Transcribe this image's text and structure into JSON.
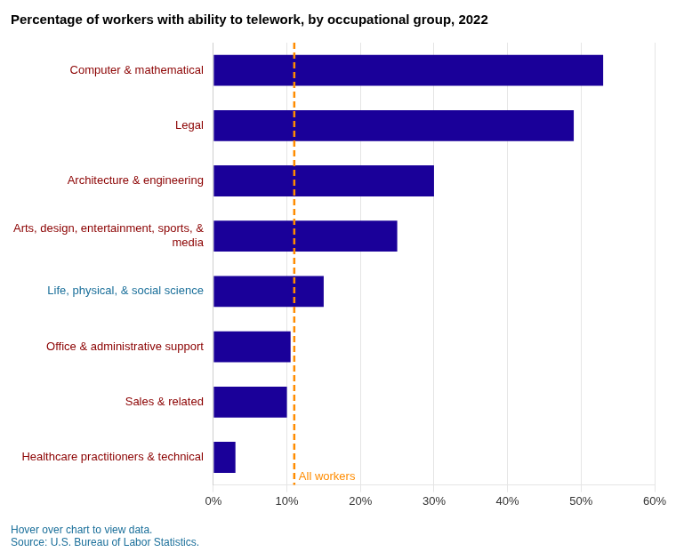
{
  "chart_data": {
    "type": "bar",
    "orientation": "horizontal",
    "title": "Percentage of workers with ability to telework, by occupational group, 2022",
    "categories": [
      "Healthcare practitioners & technical",
      "Sales & related",
      "Office & administrative support",
      "Life, physical, & social science",
      "Arts, design, entertainment, sports, &\nmedia",
      "Architecture & engineering",
      "Legal",
      "Computer & mathematical"
    ],
    "values": [
      3,
      10,
      10.5,
      15,
      25,
      30,
      49,
      53
    ],
    "color": "#1a0099",
    "label_colors": [
      "#8b0000",
      "#8b0000",
      "#8b0000",
      "#1a6f9a",
      "#8b0000",
      "#8b0000",
      "#8b0000",
      "#8b0000"
    ],
    "xlim": [
      0,
      60
    ],
    "xticks": [
      {
        "value": 0,
        "label": "0%"
      },
      {
        "value": 10,
        "label": "10%"
      },
      {
        "value": 20,
        "label": "20%"
      },
      {
        "value": 30,
        "label": "30%"
      },
      {
        "value": 40,
        "label": "40%"
      },
      {
        "value": 50,
        "label": "50%"
      },
      {
        "value": 60,
        "label": "60%"
      }
    ],
    "grid": true,
    "annotations": [
      {
        "x": 11,
        "text": "All workers",
        "color": "#ff8c00",
        "line_style": "dashed"
      }
    ],
    "footnotes": [
      "Hover over chart to view data.",
      "Source: U.S. Bureau of Labor Statistics."
    ],
    "footnote_color": "#1a6f9a"
  }
}
